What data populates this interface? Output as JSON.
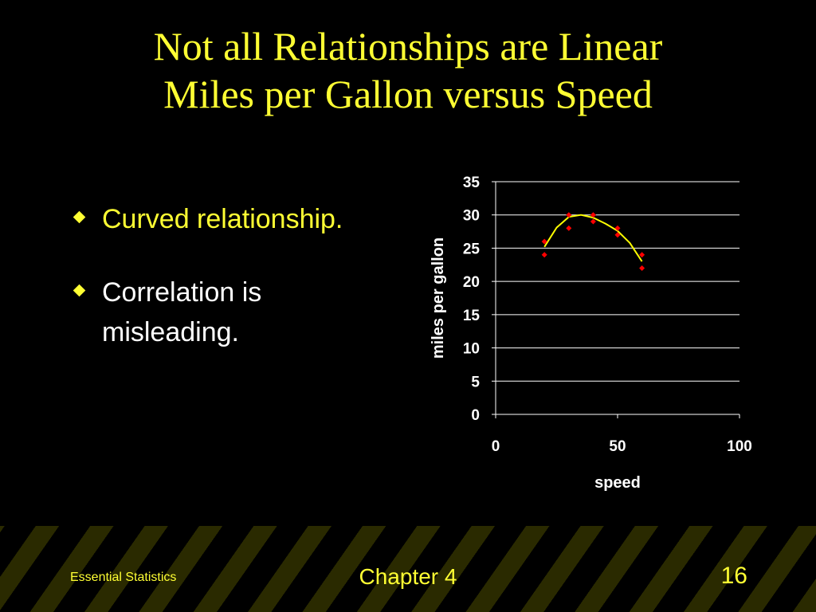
{
  "slide": {
    "title_line1": "Not all Relationships are Linear",
    "title_line2": "Miles per Gallon versus Speed",
    "bullets": [
      {
        "text": "Curved relationship.",
        "color": "#ffff33"
      },
      {
        "text": "Correlation is misleading.",
        "color": "#ffffff"
      }
    ],
    "bullet_icon": "diamond-icon"
  },
  "footer": {
    "left": "Essential Statistics",
    "center": "Chapter 4",
    "right": "16"
  },
  "chart_data": {
    "type": "scatter",
    "title": "",
    "xlabel": "speed",
    "ylabel": "miles per gallon",
    "xlim": [
      0,
      100
    ],
    "ylim": [
      0,
      35
    ],
    "xticks": [
      0,
      50,
      100
    ],
    "yticks": [
      0,
      5,
      10,
      15,
      20,
      25,
      30,
      35
    ],
    "grid": "horizontal",
    "series": [
      {
        "points": [
          {
            "x": 20,
            "y": 26
          },
          {
            "x": 20,
            "y": 24
          },
          {
            "x": 30,
            "y": 30
          },
          {
            "x": 30,
            "y": 28
          },
          {
            "x": 40,
            "y": 30
          },
          {
            "x": 40,
            "y": 29
          },
          {
            "x": 50,
            "y": 28
          },
          {
            "x": 50,
            "y": 27
          },
          {
            "x": 60,
            "y": 24
          },
          {
            "x": 60,
            "y": 22
          }
        ],
        "color": "#ff0000"
      }
    ],
    "trendline": {
      "type": "quadratic",
      "x": [
        20,
        25,
        30,
        35,
        40,
        45,
        50,
        55,
        60
      ],
      "y": [
        25.2,
        28.1,
        29.7,
        30.0,
        29.6,
        28.7,
        27.6,
        25.8,
        23.0
      ],
      "color": "#ffff00"
    },
    "colors": {
      "text": "#ffffff",
      "grid": "#ffffff",
      "background": "#000000"
    }
  }
}
